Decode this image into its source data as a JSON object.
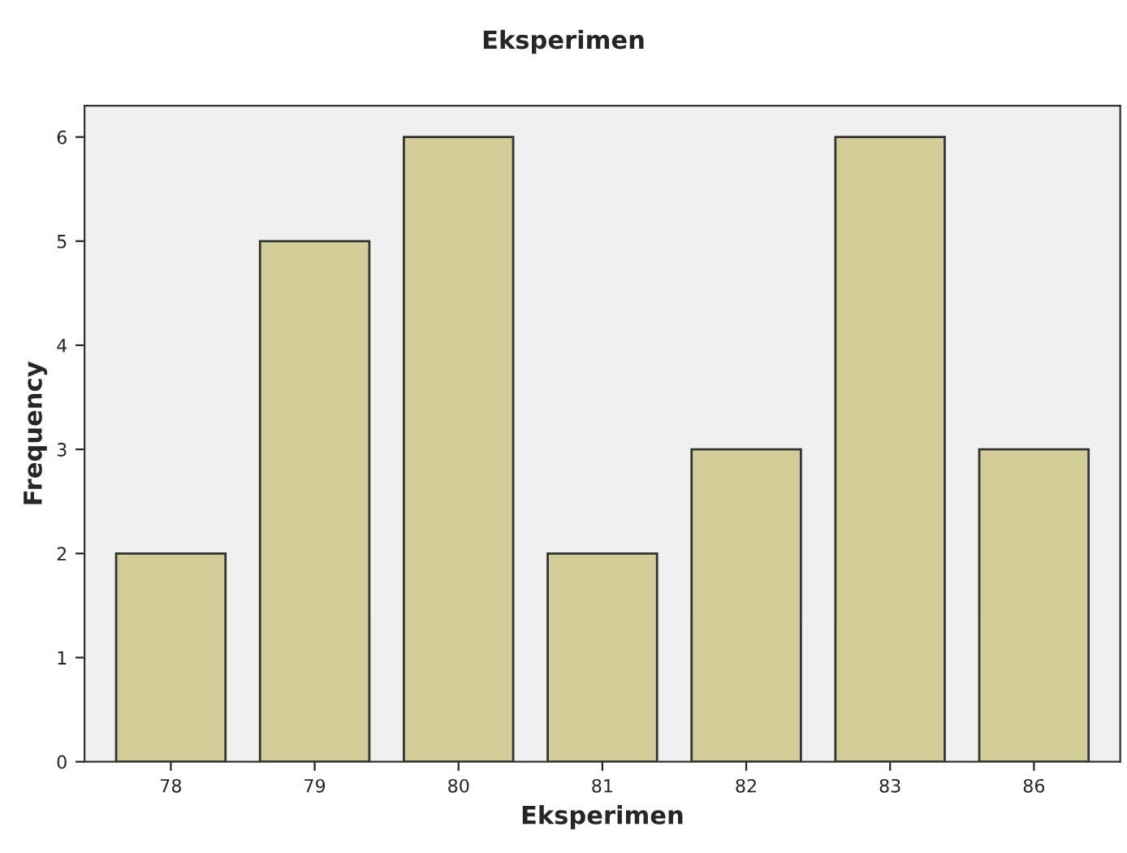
{
  "chart_data": {
    "type": "bar",
    "title": "Eksperimen",
    "xlabel": "Eksperimen",
    "ylabel": "Frequency",
    "categories": [
      "78",
      "79",
      "80",
      "81",
      "82",
      "83",
      "86"
    ],
    "values": [
      2,
      5,
      6,
      2,
      3,
      6,
      3
    ],
    "color": "#d3ce97",
    "ylim": [
      0,
      6.3
    ],
    "yticks": [
      0,
      1,
      2,
      3,
      4,
      5,
      6
    ],
    "grid": false,
    "legend": false
  }
}
